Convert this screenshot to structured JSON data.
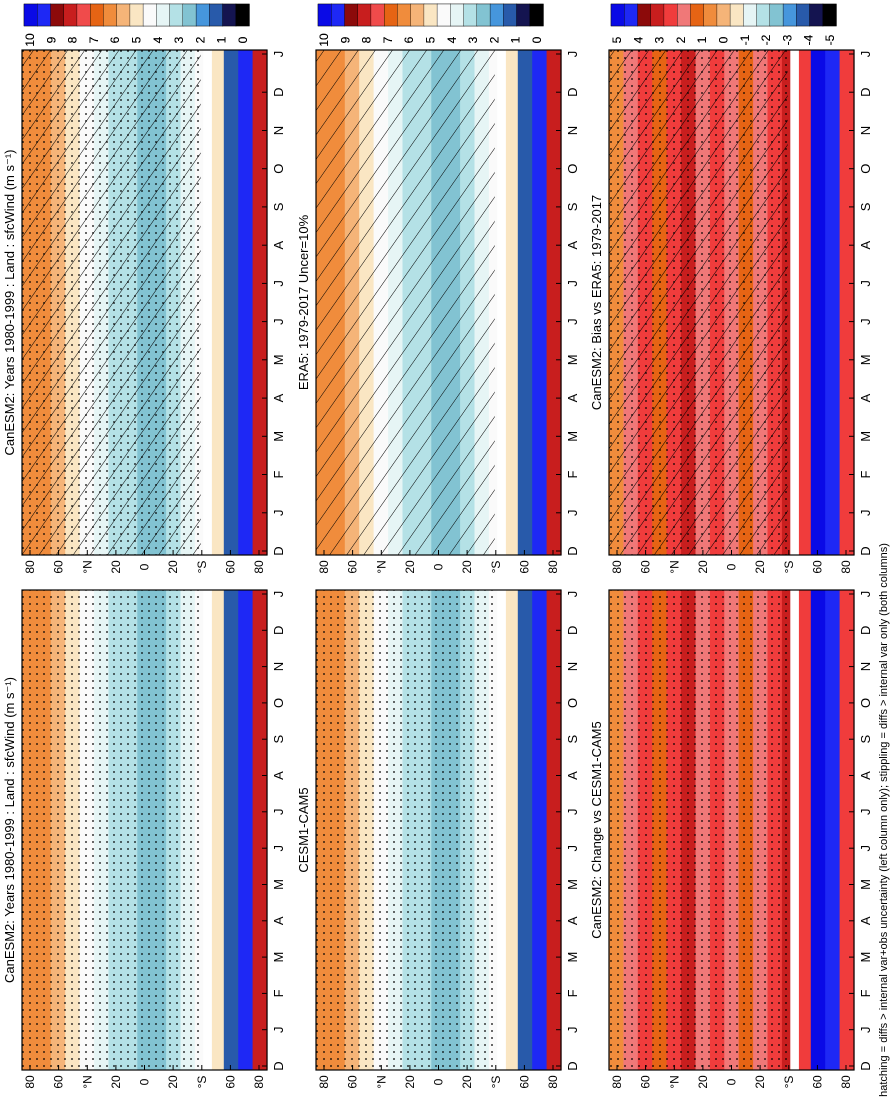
{
  "figure": {
    "footnote": "hatching = diffs > internal var+obs uncertainty (left column only); stippling = diffs > internal var only (both columns)"
  },
  "chart_data": [
    {
      "type": "heatmap",
      "title": "CanESM2: Years 1980-1999 : Land : sfcWind (m s⁻¹)",
      "x_ticks": [
        "D",
        "J",
        "F",
        "M",
        "A",
        "M",
        "J",
        "J",
        "A",
        "S",
        "O",
        "N",
        "D",
        "J"
      ],
      "y_ticks": [
        "80",
        "60",
        "°N",
        "20",
        "0",
        "20",
        "°S",
        "60",
        "80"
      ],
      "colorbar": {
        "labels": [
          "10",
          "9",
          "8",
          "7",
          "6",
          "5",
          "4",
          "3",
          "2",
          "1",
          "0"
        ]
      },
      "overlay": "hatching+stippling"
    },
    {
      "type": "heatmap",
      "title": "CanESM2: Years 1980-1999 : Land : sfcWind (m s⁻¹)",
      "x_ticks": [
        "D",
        "J",
        "F",
        "M",
        "A",
        "M",
        "J",
        "J",
        "A",
        "S",
        "O",
        "N",
        "D",
        "J"
      ],
      "y_ticks": [
        "80",
        "60",
        "°N",
        "20",
        "0",
        "20",
        "°S",
        "60",
        "80"
      ],
      "colorbar": {
        "labels": [
          "10",
          "9",
          "8",
          "7",
          "6",
          "5",
          "4",
          "3",
          "2",
          "1",
          "0"
        ]
      },
      "overlay": "stippling"
    },
    {
      "type": "heatmap",
      "title": "ERA5: 1979-2017 Uncer=10%",
      "x_ticks": [
        "D",
        "J",
        "F",
        "M",
        "A",
        "M",
        "J",
        "J",
        "A",
        "S",
        "O",
        "N",
        "D",
        "J"
      ],
      "y_ticks": [
        "80",
        "60",
        "°N",
        "20",
        "0",
        "20",
        "°S",
        "60",
        "80"
      ],
      "colorbar": {
        "labels": [
          "10",
          "9",
          "8",
          "7",
          "6",
          "5",
          "4",
          "3",
          "2",
          "1",
          "0"
        ]
      },
      "overlay": "hatching"
    },
    {
      "type": "heatmap",
      "title": "CESM1-CAM5",
      "x_ticks": [
        "D",
        "J",
        "F",
        "M",
        "A",
        "M",
        "J",
        "J",
        "A",
        "S",
        "O",
        "N",
        "D",
        "J"
      ],
      "y_ticks": [
        "80",
        "60",
        "°N",
        "20",
        "0",
        "20",
        "°S",
        "60",
        "80"
      ],
      "colorbar": {
        "labels": [
          "10",
          "9",
          "8",
          "7",
          "6",
          "5",
          "4",
          "3",
          "2",
          "1",
          "0"
        ]
      },
      "overlay": "stippling"
    },
    {
      "type": "heatmap",
      "title": "CanESM2: Bias vs ERA5: 1979-2017",
      "x_ticks": [
        "D",
        "J",
        "F",
        "M",
        "A",
        "M",
        "J",
        "J",
        "A",
        "S",
        "O",
        "N",
        "D",
        "J"
      ],
      "y_ticks": [
        "80",
        "60",
        "°N",
        "20",
        "0",
        "20",
        "°S",
        "60",
        "80"
      ],
      "colorbar": {
        "labels": [
          "5",
          "4",
          "3",
          "2",
          "1",
          "0",
          "-1",
          "-2",
          "-3",
          "-4",
          "-5"
        ]
      },
      "overlay": "hatching+stippling"
    },
    {
      "type": "heatmap",
      "title": "CanESM2: Change vs CESM1-CAM5",
      "x_ticks": [
        "D",
        "J",
        "F",
        "M",
        "A",
        "M",
        "J",
        "J",
        "A",
        "S",
        "O",
        "N",
        "D",
        "J"
      ],
      "y_ticks": [
        "80",
        "60",
        "°N",
        "20",
        "0",
        "20",
        "°S",
        "60",
        "80"
      ],
      "colorbar": {
        "labels": [
          "5",
          "4",
          "3",
          "2",
          "1",
          "0",
          "-1",
          "-2",
          "-3",
          "-4",
          "-5"
        ]
      },
      "overlay": "stippling"
    }
  ],
  "colors": {
    "abs_scale": [
      "#0a0ae6",
      "#1e28f5",
      "#8c0a0a",
      "#c81e1e",
      "#f04b4b",
      "#e66414",
      "#f08c3c",
      "#f5b478",
      "#fae6c3",
      "#fafafa",
      "#e6f5f5",
      "#b4e1e6",
      "#82c3d2",
      "#4696dc",
      "#285aaa",
      "#141450",
      "#000000"
    ],
    "diff_scale": [
      "#0a0ae6",
      "#1e28f5",
      "#8c0a0a",
      "#c81e1e",
      "#f03c3c",
      "#f07878",
      "#e66414",
      "#f08c3c",
      "#f5b478",
      "#fae6c3",
      "#e6f5f5",
      "#b4e1e6",
      "#82c3d2",
      "#4696dc",
      "#285aaa",
      "#141450",
      "#000000"
    ]
  }
}
